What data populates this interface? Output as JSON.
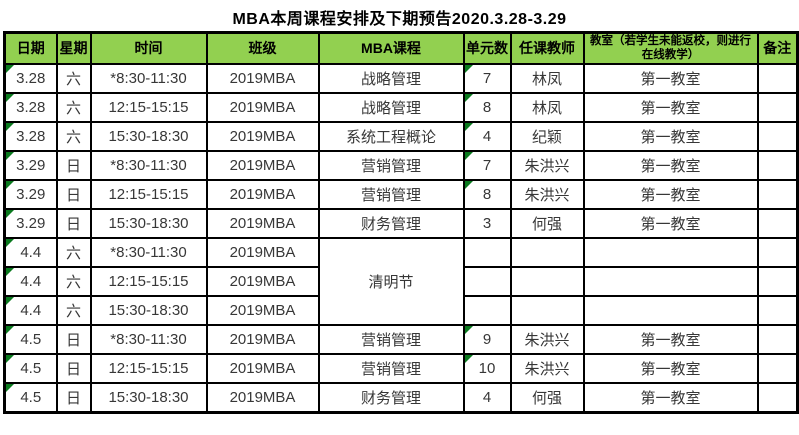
{
  "title": "MBA本周课程安排及下期预告2020.3.28-3.29",
  "colors": {
    "header_bg": "#92d050",
    "border": "#000000",
    "triangle": "#0a7a1e",
    "cell_text": "#373737"
  },
  "columns": [
    "日期",
    "星期",
    "时间",
    "班级",
    "MBA课程",
    "单元数",
    "任课教师",
    "教室（若学生未能返校，则进行在线教学）",
    "备注"
  ],
  "rows": [
    {
      "date": "3.28",
      "day": "六",
      "time": "*8:30-11:30",
      "class_name": "2019MBA",
      "course": "战略管理",
      "units": "7",
      "teacher": "林凤",
      "room": "第一教室",
      "note": "",
      "date_marker": true,
      "units_marker": true
    },
    {
      "date": "3.28",
      "day": "六",
      "time": "12:15-15:15",
      "class_name": "2019MBA",
      "course": "战略管理",
      "units": "8",
      "teacher": "林凤",
      "room": "第一教室",
      "note": "",
      "date_marker": true,
      "units_marker": true
    },
    {
      "date": "3.28",
      "day": "六",
      "time": "15:30-18:30",
      "class_name": "2019MBA",
      "course": "系统工程概论",
      "units": "4",
      "teacher": "纪颖",
      "room": "第一教室",
      "note": "",
      "date_marker": true,
      "units_marker": true
    },
    {
      "date": "3.29",
      "day": "日",
      "time": "*8:30-11:30",
      "class_name": "2019MBA",
      "course": "营销管理",
      "units": "7",
      "teacher": "朱洪兴",
      "room": "第一教室",
      "note": "",
      "date_marker": true,
      "units_marker": true
    },
    {
      "date": "3.29",
      "day": "日",
      "time": "12:15-15:15",
      "class_name": "2019MBA",
      "course": "营销管理",
      "units": "8",
      "teacher": "朱洪兴",
      "room": "第一教室",
      "note": "",
      "date_marker": true,
      "units_marker": true
    },
    {
      "date": "3.29",
      "day": "日",
      "time": "15:30-18:30",
      "class_name": "2019MBA",
      "course": "财务管理",
      "units": "3",
      "teacher": "何强",
      "room": "第一教室",
      "note": "",
      "date_marker": true,
      "units_marker": false
    },
    {
      "date": "4.4",
      "day": "六",
      "time": "*8:30-11:30",
      "class_name": "2019MBA",
      "course": "清明节",
      "course_rowspan": 3,
      "units": "",
      "teacher": "",
      "room": "",
      "note": "",
      "date_marker": true,
      "units_marker": false
    },
    {
      "date": "4.4",
      "day": "六",
      "time": "12:15-15:15",
      "class_name": "2019MBA",
      "course": null,
      "units": "",
      "teacher": "",
      "room": "",
      "note": "",
      "date_marker": true,
      "units_marker": false
    },
    {
      "date": "4.4",
      "day": "六",
      "time": "15:30-18:30",
      "class_name": "2019MBA",
      "course": null,
      "units": "",
      "teacher": "",
      "room": "",
      "note": "",
      "date_marker": true,
      "units_marker": false
    },
    {
      "date": "4.5",
      "day": "日",
      "time": "*8:30-11:30",
      "class_name": "2019MBA",
      "course": "营销管理",
      "units": "9",
      "teacher": "朱洪兴",
      "room": "第一教室",
      "note": "",
      "date_marker": true,
      "units_marker": true
    },
    {
      "date": "4.5",
      "day": "日",
      "time": "12:15-15:15",
      "class_name": "2019MBA",
      "course": "营销管理",
      "units": "10",
      "teacher": "朱洪兴",
      "room": "第一教室",
      "note": "",
      "date_marker": true,
      "units_marker": true
    },
    {
      "date": "4.5",
      "day": "日",
      "time": "15:30-18:30",
      "class_name": "2019MBA",
      "course": "财务管理",
      "units": "4",
      "teacher": "何强",
      "room": "第一教室",
      "note": "",
      "date_marker": true,
      "units_marker": false
    }
  ]
}
